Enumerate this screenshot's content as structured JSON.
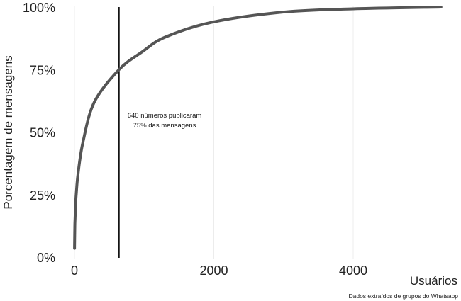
{
  "chart_data": {
    "type": "line",
    "title": "",
    "xlabel": "Usuários",
    "ylabel": "Porcentagem de mensagens",
    "xlim": [
      0,
      5400
    ],
    "ylim": [
      0,
      100
    ],
    "x_ticks": [
      0,
      2000,
      4000
    ],
    "x_tick_labels": [
      "0",
      "2000",
      "4000"
    ],
    "y_ticks": [
      0,
      25,
      50,
      75,
      100
    ],
    "y_tick_labels": [
      "0%",
      "25%",
      "50%",
      "75%",
      "100%"
    ],
    "grid": "vertical major lines, faint",
    "line_color": "#555555",
    "series": [
      {
        "x": [
          1,
          2,
          3,
          4,
          5,
          6,
          8,
          10,
          15,
          20,
          25,
          50,
          122,
          285,
          640,
          967,
          1303,
          1985,
          3000,
          4000,
          5260
        ],
        "y": [
          3.5,
          6,
          8,
          10,
          12,
          13.5,
          15,
          16.5,
          20,
          23,
          25,
          33,
          46,
          62,
          75,
          82,
          88,
          94,
          98,
          99.3,
          100
        ]
      }
    ],
    "reference_line": {
      "x": 640,
      "color": "#000000"
    },
    "annotation": {
      "line1": "640 números publicaram",
      "line2": "75% das mensagens"
    },
    "caption": "Dados extraídos de grupos do Whatsapp"
  }
}
